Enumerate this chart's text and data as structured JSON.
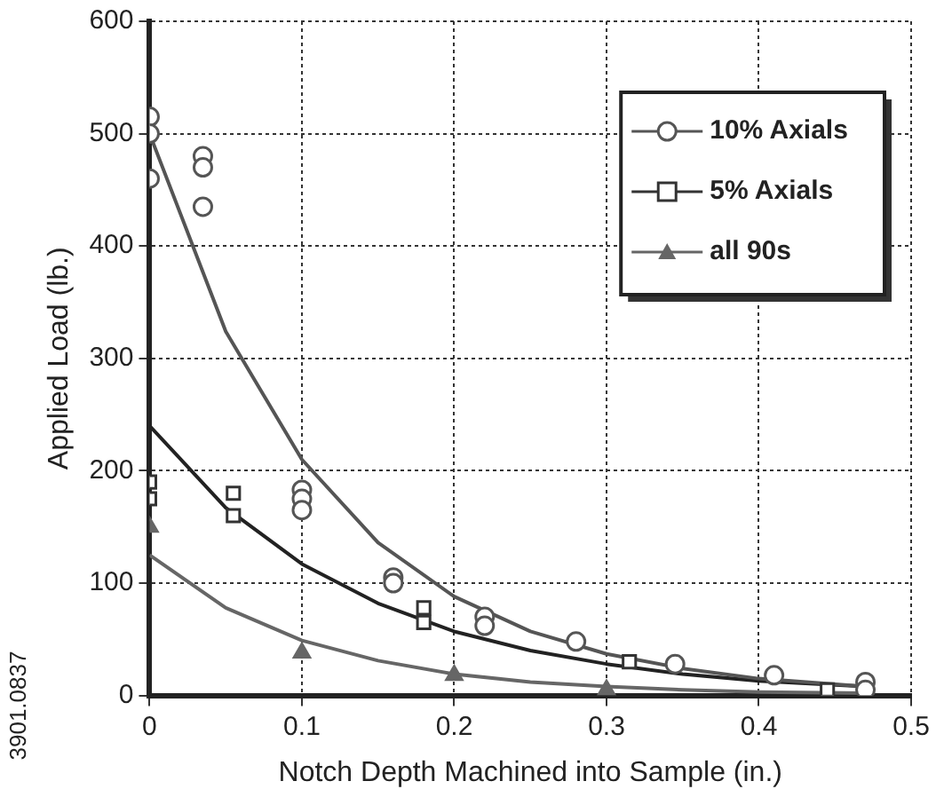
{
  "chart_data": {
    "type": "scatter",
    "xlabel": "Notch Depth Machined into Sample (in.)",
    "ylabel": "Applied Load (lb.)",
    "annotations": [
      "3901.0837"
    ],
    "xlim": [
      0,
      0.5
    ],
    "xticks": [
      0,
      0.1,
      0.2,
      0.3,
      0.4,
      0.5
    ],
    "ylim": [
      0,
      600
    ],
    "yticks": [
      0,
      100,
      200,
      300,
      400,
      500,
      600
    ],
    "grid": true,
    "legend": "top right",
    "series": [
      {
        "name": "10% Axials",
        "type": "scatter",
        "marker": "circle",
        "color": "#555555",
        "x": [
          0,
          0,
          0,
          0.035,
          0.035,
          0.035,
          0.1,
          0.1,
          0.1,
          0.16,
          0.16,
          0.22,
          0.22,
          0.28,
          0.345,
          0.41,
          0.47,
          0.47
        ],
        "values": [
          515,
          500,
          460,
          480,
          470,
          435,
          183,
          175,
          165,
          105,
          100,
          70,
          62,
          48,
          28,
          18,
          12,
          5
        ]
      },
      {
        "name": "5% Axials",
        "type": "scatter",
        "marker": "square",
        "color": "#333333",
        "x": [
          0,
          0,
          0.055,
          0.055,
          0.18,
          0.18,
          0.315,
          0.445
        ],
        "values": [
          190,
          175,
          180,
          160,
          78,
          65,
          30,
          5
        ]
      },
      {
        "name": "all 90s",
        "type": "scatter",
        "marker": "triangle",
        "color": "#666666",
        "x": [
          0,
          0.1,
          0.2,
          0.3
        ],
        "values": [
          150,
          38,
          18,
          5
        ]
      },
      {
        "type": "line",
        "marker": "none",
        "color": "#555555",
        "x": [
          0,
          0.05,
          0.1,
          0.15,
          0.2,
          0.25,
          0.3,
          0.35,
          0.4,
          0.47
        ],
        "values": [
          500,
          324,
          210,
          136,
          88,
          57,
          37,
          24,
          15,
          8
        ]
      },
      {
        "type": "line",
        "marker": "none",
        "color": "#222222",
        "x": [
          0,
          0.05,
          0.1,
          0.15,
          0.2,
          0.25,
          0.3,
          0.35,
          0.4,
          0.47
        ],
        "values": [
          240,
          167,
          117,
          82,
          57,
          40,
          28,
          19,
          13,
          8
        ]
      },
      {
        "type": "line",
        "marker": "none",
        "color": "#666666",
        "x": [
          0,
          0.05,
          0.1,
          0.15,
          0.2,
          0.25,
          0.3,
          0.35,
          0.4,
          0.47
        ],
        "values": [
          125,
          78,
          49,
          31,
          19,
          12,
          8,
          5,
          3,
          2
        ]
      }
    ]
  }
}
